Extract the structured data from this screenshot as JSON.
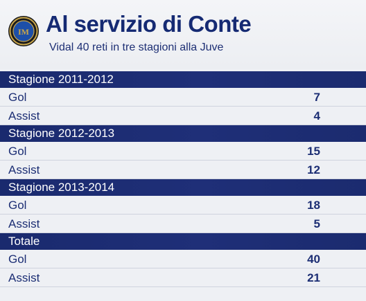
{
  "header": {
    "title": "Al servizio di Conte",
    "subtitle": "Vidal 40 reti in tre stagioni alla Juve",
    "logo_icon": "inter-crest-icon",
    "colors": {
      "brand_navy": "#152a73",
      "section_bar": "#1f2f78",
      "background": "#eef0f4"
    }
  },
  "table": {
    "sections": [
      {
        "title": "Stagione 2011-2012",
        "rows": [
          {
            "label": "Gol",
            "value": "7"
          },
          {
            "label": "Assist",
            "value": "4"
          }
        ]
      },
      {
        "title": "Stagione 2012-2013",
        "rows": [
          {
            "label": "Gol",
            "value": "15"
          },
          {
            "label": "Assist",
            "value": "12"
          }
        ]
      },
      {
        "title": "Stagione 2013-2014",
        "rows": [
          {
            "label": "Gol",
            "value": "18"
          },
          {
            "label": "Assist",
            "value": "5"
          }
        ]
      },
      {
        "title": "Totale",
        "rows": [
          {
            "label": "Gol",
            "value": "40"
          },
          {
            "label": "Assist",
            "value": "21"
          }
        ]
      }
    ]
  }
}
